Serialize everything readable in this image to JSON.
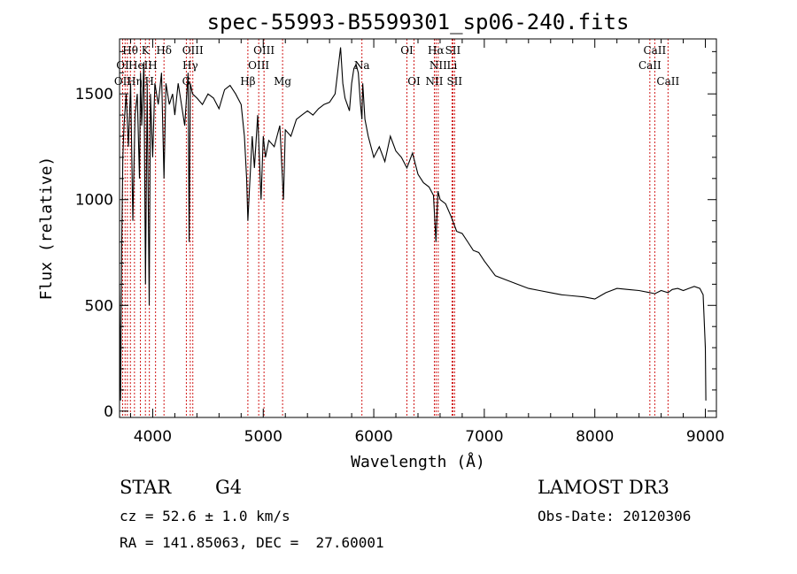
{
  "chart_data": {
    "type": "line",
    "title": "spec-55993-B5599301_sp06-240.fits",
    "xlabel": "Wavelength (Å)",
    "ylabel": "Flux (relative)",
    "xlim": [
      3700,
      9100
    ],
    "ylim": [
      -30,
      1760
    ],
    "xticks": [
      4000,
      5000,
      6000,
      7000,
      8000,
      9000
    ],
    "yticks": [
      0,
      500,
      1000,
      1500
    ],
    "grid": false,
    "series": [
      {
        "name": "flux",
        "x": [
          3700,
          3710,
          3720,
          3730,
          3740,
          3760,
          3780,
          3800,
          3820,
          3840,
          3860,
          3880,
          3890,
          3900,
          3920,
          3935,
          3950,
          3968,
          3980,
          4000,
          4020,
          4050,
          4080,
          4102,
          4120,
          4150,
          4180,
          4200,
          4230,
          4260,
          4290,
          4320,
          4330,
          4340,
          4360,
          4400,
          4450,
          4500,
          4550,
          4600,
          4650,
          4700,
          4750,
          4800,
          4830,
          4850,
          4861,
          4880,
          4900,
          4920,
          4950,
          4980,
          5000,
          5020,
          5050,
          5100,
          5150,
          5183,
          5200,
          5250,
          5300,
          5350,
          5400,
          5450,
          5500,
          5550,
          5600,
          5650,
          5700,
          5720,
          5740,
          5760,
          5780,
          5800,
          5820,
          5840,
          5860,
          5880,
          5893,
          5900,
          5920,
          5950,
          6000,
          6050,
          6100,
          6150,
          6200,
          6250,
          6300,
          6350,
          6400,
          6450,
          6500,
          6540,
          6563,
          6580,
          6600,
          6650,
          6700,
          6750,
          6800,
          6850,
          6900,
          6950,
          7000,
          7100,
          7200,
          7300,
          7400,
          7500,
          7600,
          7700,
          7800,
          7900,
          8000,
          8050,
          8100,
          8150,
          8200,
          8300,
          8400,
          8500,
          8542,
          8600,
          8662,
          8700,
          8750,
          8800,
          8850,
          8900,
          8950,
          8980,
          9000,
          9005
        ],
        "values": [
          600,
          50,
          800,
          1200,
          1350,
          1500,
          1250,
          1550,
          900,
          1400,
          1500,
          1100,
          1600,
          1350,
          1650,
          600,
          1550,
          500,
          1500,
          1200,
          1550,
          1450,
          1600,
          1100,
          1550,
          1450,
          1500,
          1400,
          1550,
          1450,
          1350,
          1600,
          800,
          1550,
          1500,
          1480,
          1450,
          1500,
          1480,
          1430,
          1520,
          1540,
          1500,
          1450,
          1300,
          1100,
          900,
          1100,
          1300,
          1150,
          1400,
          1000,
          1300,
          1200,
          1280,
          1250,
          1350,
          1000,
          1330,
          1300,
          1380,
          1400,
          1420,
          1400,
          1430,
          1450,
          1460,
          1500,
          1720,
          1550,
          1480,
          1450,
          1420,
          1550,
          1620,
          1640,
          1600,
          1450,
          1380,
          1550,
          1380,
          1300,
          1200,
          1250,
          1180,
          1300,
          1230,
          1200,
          1150,
          1220,
          1120,
          1080,
          1060,
          1020,
          800,
          1040,
          1000,
          980,
          920,
          850,
          840,
          800,
          760,
          750,
          710,
          640,
          620,
          600,
          580,
          570,
          560,
          550,
          545,
          540,
          530,
          545,
          560,
          570,
          580,
          575,
          570,
          560,
          555,
          570,
          560,
          575,
          580,
          570,
          580,
          590,
          580,
          550,
          300,
          50
        ]
      }
    ],
    "reference_lines": {
      "wavelengths": [
        3728,
        3750,
        3771,
        3798,
        3835,
        3889,
        3934,
        3970,
        4026,
        4102,
        4304,
        4340,
        4363,
        4861,
        4959,
        5007,
        5175,
        5893,
        6300,
        6364,
        6548,
        6563,
        6583,
        6708,
        6716,
        6731,
        8498,
        8542,
        8662
      ],
      "labels": [
        {
          "text": "Hθ",
          "x": 3797,
          "row": 1
        },
        {
          "text": "K",
          "x": 3934,
          "row": 1
        },
        {
          "text": "Hδ",
          "x": 4102,
          "row": 1
        },
        {
          "text": "OIII",
          "x": 4363,
          "row": 1
        },
        {
          "text": "OIII",
          "x": 5007,
          "row": 1
        },
        {
          "text": "OI",
          "x": 6300,
          "row": 1
        },
        {
          "text": "Hα",
          "x": 6563,
          "row": 1
        },
        {
          "text": "SII",
          "x": 6716,
          "row": 1
        },
        {
          "text": "CaII",
          "x": 8542,
          "row": 1
        },
        {
          "text": "OI",
          "x": 3728,
          "row": 2
        },
        {
          "text": "HeI",
          "x": 3870,
          "row": 2
        },
        {
          "text": "H",
          "x": 4000,
          "row": 2
        },
        {
          "text": "Hγ",
          "x": 4340,
          "row": 2
        },
        {
          "text": "OIII",
          "x": 4959,
          "row": 2
        },
        {
          "text": "Na",
          "x": 5893,
          "row": 2
        },
        {
          "text": "NII",
          "x": 6583,
          "row": 2
        },
        {
          "text": "Li",
          "x": 6708,
          "row": 2
        },
        {
          "text": "CaII",
          "x": 8498,
          "row": 2
        },
        {
          "text": "OII",
          "x": 3728,
          "row": 3
        },
        {
          "text": "Hη",
          "x": 3835,
          "row": 3
        },
        {
          "text": "H",
          "x": 3970,
          "row": 3
        },
        {
          "text": "G",
          "x": 4304,
          "row": 3
        },
        {
          "text": "Hβ",
          "x": 4861,
          "row": 3
        },
        {
          "text": "Mg",
          "x": 5175,
          "row": 3
        },
        {
          "text": "OI",
          "x": 6364,
          "row": 3
        },
        {
          "text": "NII",
          "x": 6548,
          "row": 3
        },
        {
          "text": "SII",
          "x": 6731,
          "row": 3
        },
        {
          "text": "CaII",
          "x": 8662,
          "row": 3
        }
      ]
    }
  },
  "info": {
    "object_class": "STAR",
    "subclass": "G4",
    "survey": "LAMOST DR3",
    "cz": "cz = 52.6 ± 1.0 km/s",
    "obs_date": "Obs-Date: 20120306",
    "coords": "RA = 141.85063, DEC =  27.60001"
  },
  "colors": {
    "line": "#000000",
    "reference": "#cc0000"
  }
}
